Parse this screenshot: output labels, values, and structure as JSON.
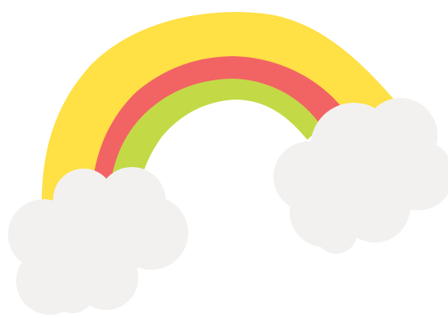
{
  "illustration": {
    "subject": "rainbow-with-clouds",
    "colors": {
      "outer_band": "#FFE045",
      "middle_band": "#F26464",
      "inner_band": "#C3DA46",
      "cloud": "#F2F1F0",
      "background": "#FFFFFF"
    },
    "bands": [
      "yellow",
      "red",
      "green"
    ],
    "clouds": [
      "left-cloud",
      "right-cloud"
    ]
  }
}
